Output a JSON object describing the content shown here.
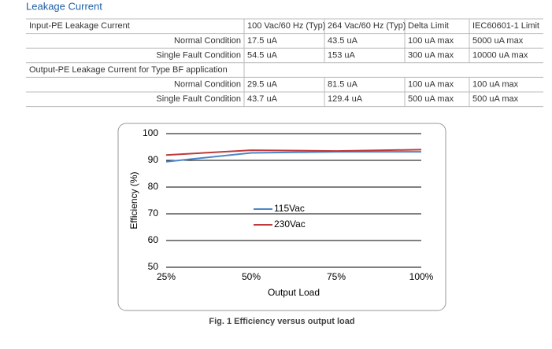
{
  "header": {
    "title": "Leakage Current"
  },
  "table": {
    "header": [
      "Input-PE Leakage Current",
      "100 Vac/60 Hz (Typ)",
      "264 Vac/60 Hz (Typ)",
      "Delta Limit",
      "IEC60601-1 Limit"
    ],
    "rows": [
      [
        "Normal Condition",
        "17.5 uA",
        "43.5 uA",
        "100 uA max",
        "5000 uA max"
      ],
      [
        "Single Fault Condition",
        "54.5 uA",
        "153 uA",
        "300 uA max",
        "10000 uA max"
      ],
      [
        "Output-PE Leakage Current for Type BF application"
      ],
      [
        "Normal Condition",
        "29.5 uA",
        "81.5 uA",
        "100 uA max",
        "100 uA max"
      ],
      [
        "Single Fault Condition",
        "43.7 uA",
        "129.4 uA",
        "500 uA max",
        "500 uA max"
      ]
    ]
  },
  "chart_data": {
    "type": "line",
    "y_label": "Efficiency (%)",
    "x_label": "Output Load",
    "x": [
      25,
      50,
      75,
      100
    ],
    "xlim": [
      25,
      100
    ],
    "xticks": [
      {
        "value": 25,
        "label": "25%"
      },
      {
        "value": 50,
        "label": "50%"
      },
      {
        "value": 75,
        "label": "75%"
      },
      {
        "value": 100,
        "label": "100%"
      }
    ],
    "ylim": [
      50,
      100
    ],
    "yticks": [
      50,
      60,
      70,
      80,
      90,
      100
    ],
    "grid": true,
    "series": [
      {
        "name": "115Vac",
        "color": "#4a86c8",
        "values": [
          89.5,
          92.8,
          93.2,
          93.2
        ]
      },
      {
        "name": "230Vac",
        "color": "#c0393b",
        "values": [
          92,
          93.8,
          93.5,
          94
        ]
      }
    ]
  },
  "caption": "Fig. 1 Efficiency versus output load"
}
